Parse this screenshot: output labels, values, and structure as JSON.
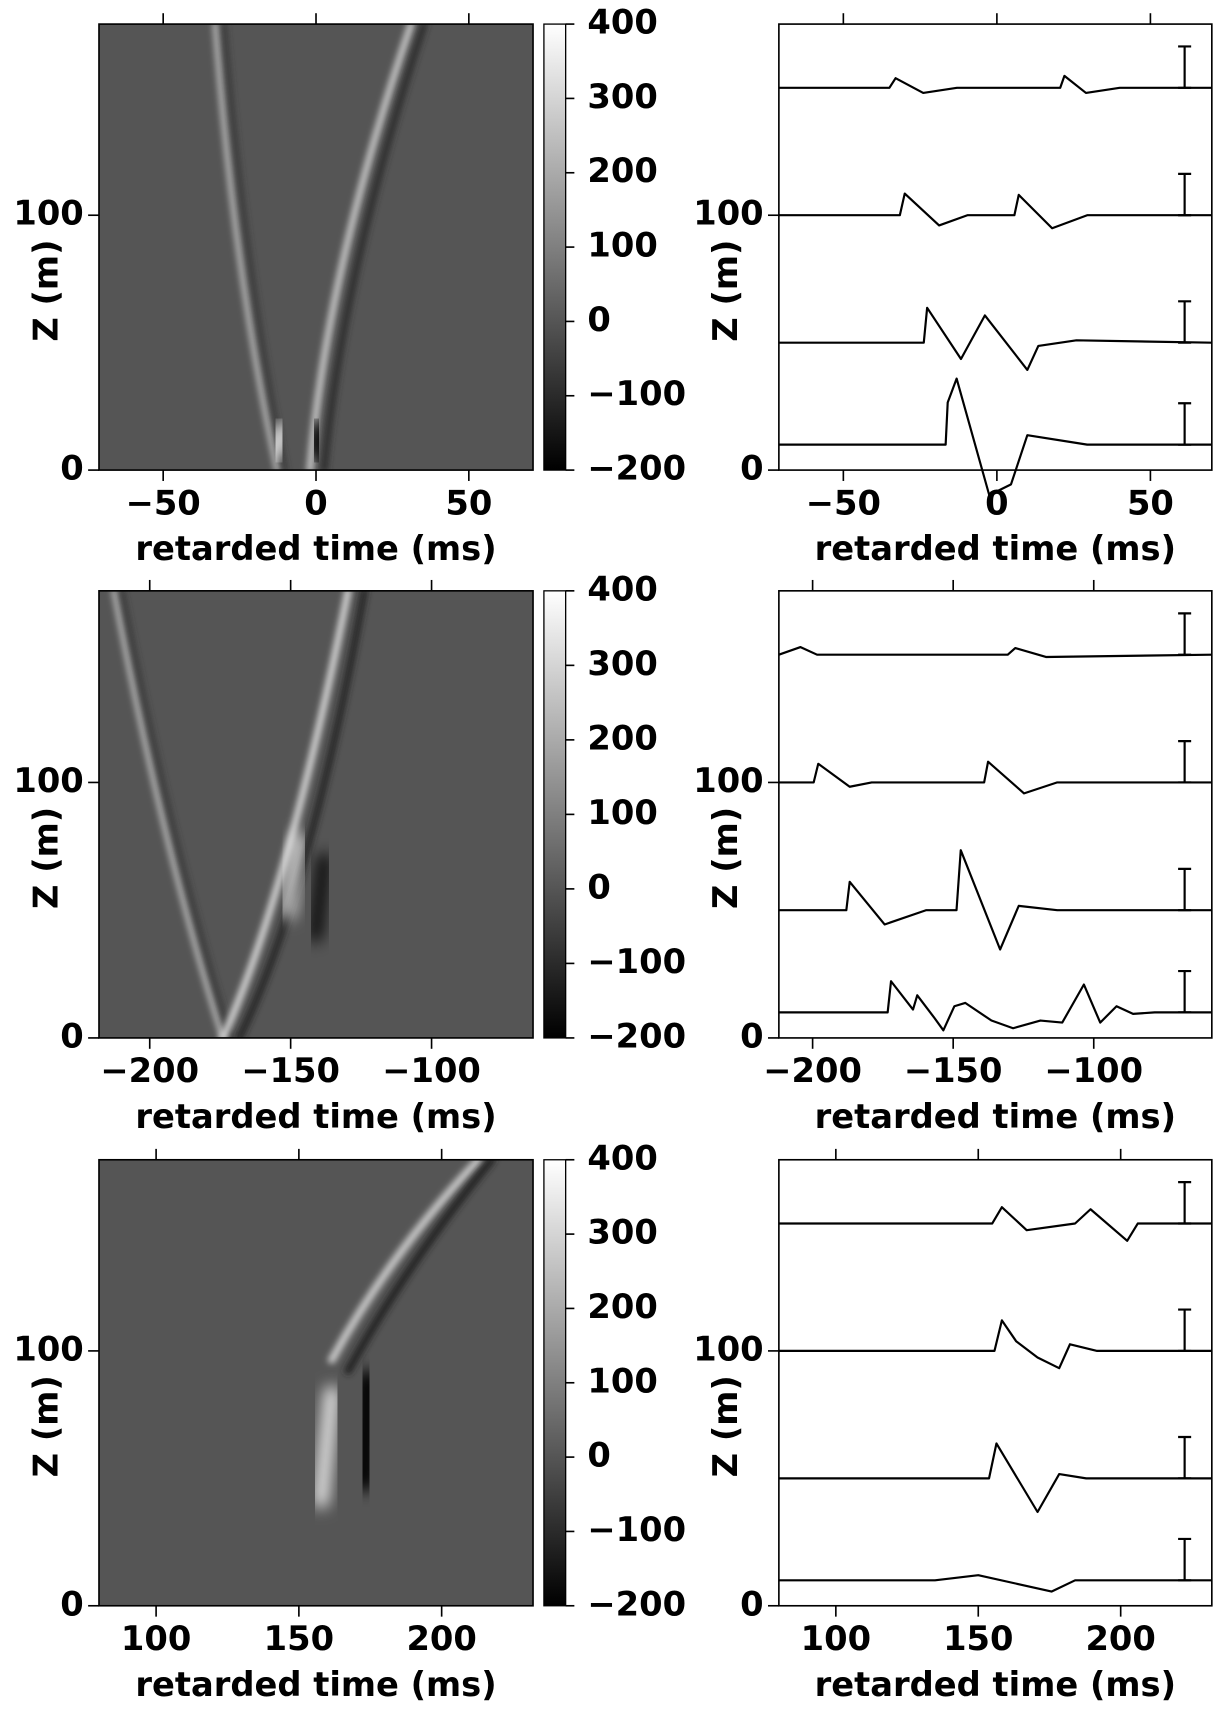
{
  "chart_data": [
    {
      "type": "heatmap",
      "xlabel": "retarded time (ms)",
      "ylabel": "Z (m)",
      "xlim": [
        -71,
        71
      ],
      "ylim": [
        0,
        175
      ],
      "xticks": [
        {
          "value": -50,
          "label": "−50"
        },
        0,
        50
      ],
      "yticks": [
        0,
        100
      ],
      "colorbar": {
        "lim": [
          -200,
          400
        ],
        "colors": [
          "#000000",
          "#ffffff"
        ],
        "ticks": [
          {
            "value": -200,
            "label": "−200"
          },
          {
            "value": -100,
            "label": "−100"
          },
          0,
          100,
          200,
          300,
          400
        ]
      }
    },
    {
      "type": "line",
      "xlabel": "retarded time (ms)",
      "ylabel": "Z (m)",
      "xlim": [
        -71,
        70
      ],
      "ylim": [
        0,
        175
      ],
      "xticks": [
        {
          "value": -50,
          "label": "−50"
        },
        0,
        50
      ],
      "yticks": [
        0,
        100
      ],
      "series": [
        {
          "color": "#000000",
          "x": [
            -71,
            -35,
            -33,
            -24,
            -13,
            20.6,
            22,
            29,
            40,
            70
          ],
          "values": [
            150,
            150,
            153.8,
            148,
            150,
            150,
            154.7,
            148,
            150,
            150
          ]
        },
        {
          "color": "#000000",
          "x": [
            -71,
            -31.6,
            -30,
            -18.8,
            -9.6,
            5.7,
            7.1,
            18,
            29.4,
            70
          ],
          "values": [
            100,
            100,
            108.5,
            96,
            100,
            100,
            108,
            94.9,
            100,
            100
          ]
        },
        {
          "color": "#000000",
          "x": [
            -71,
            -23.8,
            -22.7,
            -11.7,
            -3.9,
            9.9,
            13.5,
            25.9,
            70
          ],
          "values": [
            50,
            50,
            63.7,
            43.6,
            60.7,
            39.3,
            48.7,
            50.9,
            50
          ]
        },
        {
          "color": "#000000",
          "x": [
            -71,
            -16.7,
            -16,
            -13.1,
            -2.5,
            4.6,
            9.9,
            29.4,
            70
          ],
          "values": [
            10,
            10,
            26.5,
            35.9,
            -9.8,
            -5.6,
            13.7,
            10,
            10
          ]
        }
      ]
    },
    {
      "type": "heatmap",
      "xlabel": "retarded time (ms)",
      "ylabel": "Z (m)",
      "xlim": [
        -218,
        -64
      ],
      "ylim": [
        0,
        175
      ],
      "xticks": [
        {
          "value": -200,
          "label": "−200"
        },
        {
          "value": -150,
          "label": "−150"
        },
        {
          "value": -100,
          "label": "−100"
        }
      ],
      "yticks": [
        0,
        100
      ],
      "colorbar": {
        "lim": [
          -200,
          400
        ],
        "colors": [
          "#000000",
          "#ffffff"
        ],
        "ticks": [
          {
            "value": -200,
            "label": "−200"
          },
          {
            "value": -100,
            "label": "−100"
          },
          0,
          100,
          200,
          300,
          400
        ]
      }
    },
    {
      "type": "line",
      "xlabel": "retarded time (ms)",
      "ylabel": "Z (m)",
      "xlim": [
        -212,
        -58
      ],
      "ylim": [
        0,
        175
      ],
      "xticks": [
        {
          "value": -200,
          "label": "−200"
        },
        {
          "value": -150,
          "label": "−150"
        },
        {
          "value": -100,
          "label": "−100"
        }
      ],
      "yticks": [
        0,
        100
      ],
      "series": [
        {
          "color": "#000000",
          "x": [
            -212,
            -204.3,
            -198.4,
            -130.6,
            -127.9,
            -117,
            -58
          ],
          "values": [
            150,
            153,
            150,
            150,
            152.6,
            149.1,
            150
          ]
        },
        {
          "color": "#000000",
          "x": [
            -212,
            -199.6,
            -198,
            -186.8,
            -179,
            -139,
            -137.6,
            -124.8,
            -113,
            -58
          ],
          "values": [
            100,
            100,
            107.3,
            98.3,
            100,
            100,
            108.1,
            95.7,
            100,
            100
          ]
        },
        {
          "color": "#000000",
          "x": [
            -212,
            -188,
            -186.8,
            -174.4,
            -159.7,
            -148.8,
            -147.3,
            -133.3,
            -126.7,
            -113,
            -58
          ],
          "values": [
            50,
            50,
            61.1,
            44.4,
            50,
            50,
            73.5,
            34.6,
            51.7,
            50,
            50
          ]
        },
        {
          "color": "#000000",
          "x": [
            -212,
            -173.3,
            -172.1,
            -164.3,
            -162.8,
            -156.6,
            -153.5,
            -149.6,
            -145.7,
            -136.4,
            -128.7,
            -119,
            -111.2,
            -103.5,
            -97.7,
            -91.9,
            -86,
            -78.3,
            -58
          ],
          "values": [
            10,
            10,
            22.2,
            11.1,
            16.7,
            7.7,
            3,
            12.4,
            13.7,
            6.8,
            3.8,
            6.8,
            6,
            20.9,
            6,
            12.4,
            9.4,
            10,
            10
          ]
        }
      ]
    },
    {
      "type": "heatmap",
      "xlabel": "retarded time (ms)",
      "ylabel": "Z (m)",
      "xlim": [
        80,
        232
      ],
      "ylim": [
        0,
        175
      ],
      "xticks": [
        100,
        150,
        200
      ],
      "yticks": [
        0,
        100
      ],
      "colorbar": {
        "lim": [
          -200,
          400
        ],
        "colors": [
          "#000000",
          "#ffffff"
        ],
        "ticks": [
          {
            "value": -200,
            "label": "−200"
          },
          {
            "value": -100,
            "label": "−100"
          },
          0,
          100,
          200,
          300,
          400
        ]
      }
    },
    {
      "type": "line",
      "xlabel": "retarded time (ms)",
      "ylabel": "Z (m)",
      "xlim": [
        80,
        232
      ],
      "ylim": [
        0,
        175
      ],
      "xticks": [
        100,
        150,
        200
      ],
      "yticks": [
        0,
        100
      ],
      "series": [
        {
          "color": "#000000",
          "x": [
            80,
            154.9,
            158.3,
            167,
            184,
            189.4,
            202.3,
            206,
            232
          ],
          "values": [
            150,
            150,
            156.4,
            147.4,
            150,
            155.6,
            143.2,
            150,
            150
          ]
        },
        {
          "color": "#000000",
          "x": [
            80,
            155.7,
            158.3,
            163.3,
            170.8,
            178.4,
            182.2,
            191.7,
            232
          ],
          "values": [
            100,
            100,
            112,
            103.8,
            97.4,
            93.2,
            102.6,
            100,
            100
          ]
        },
        {
          "color": "#000000",
          "x": [
            80,
            153.8,
            156.4,
            170.8,
            178.4,
            187.9,
            232
          ],
          "values": [
            50,
            50,
            63.7,
            36.8,
            51.7,
            50,
            50
          ]
        },
        {
          "color": "#000000",
          "x": [
            80,
            134.8,
            150,
            175.8,
            184,
            232
          ],
          "values": [
            10,
            10,
            12,
            5.6,
            10,
            10
          ]
        }
      ]
    }
  ]
}
